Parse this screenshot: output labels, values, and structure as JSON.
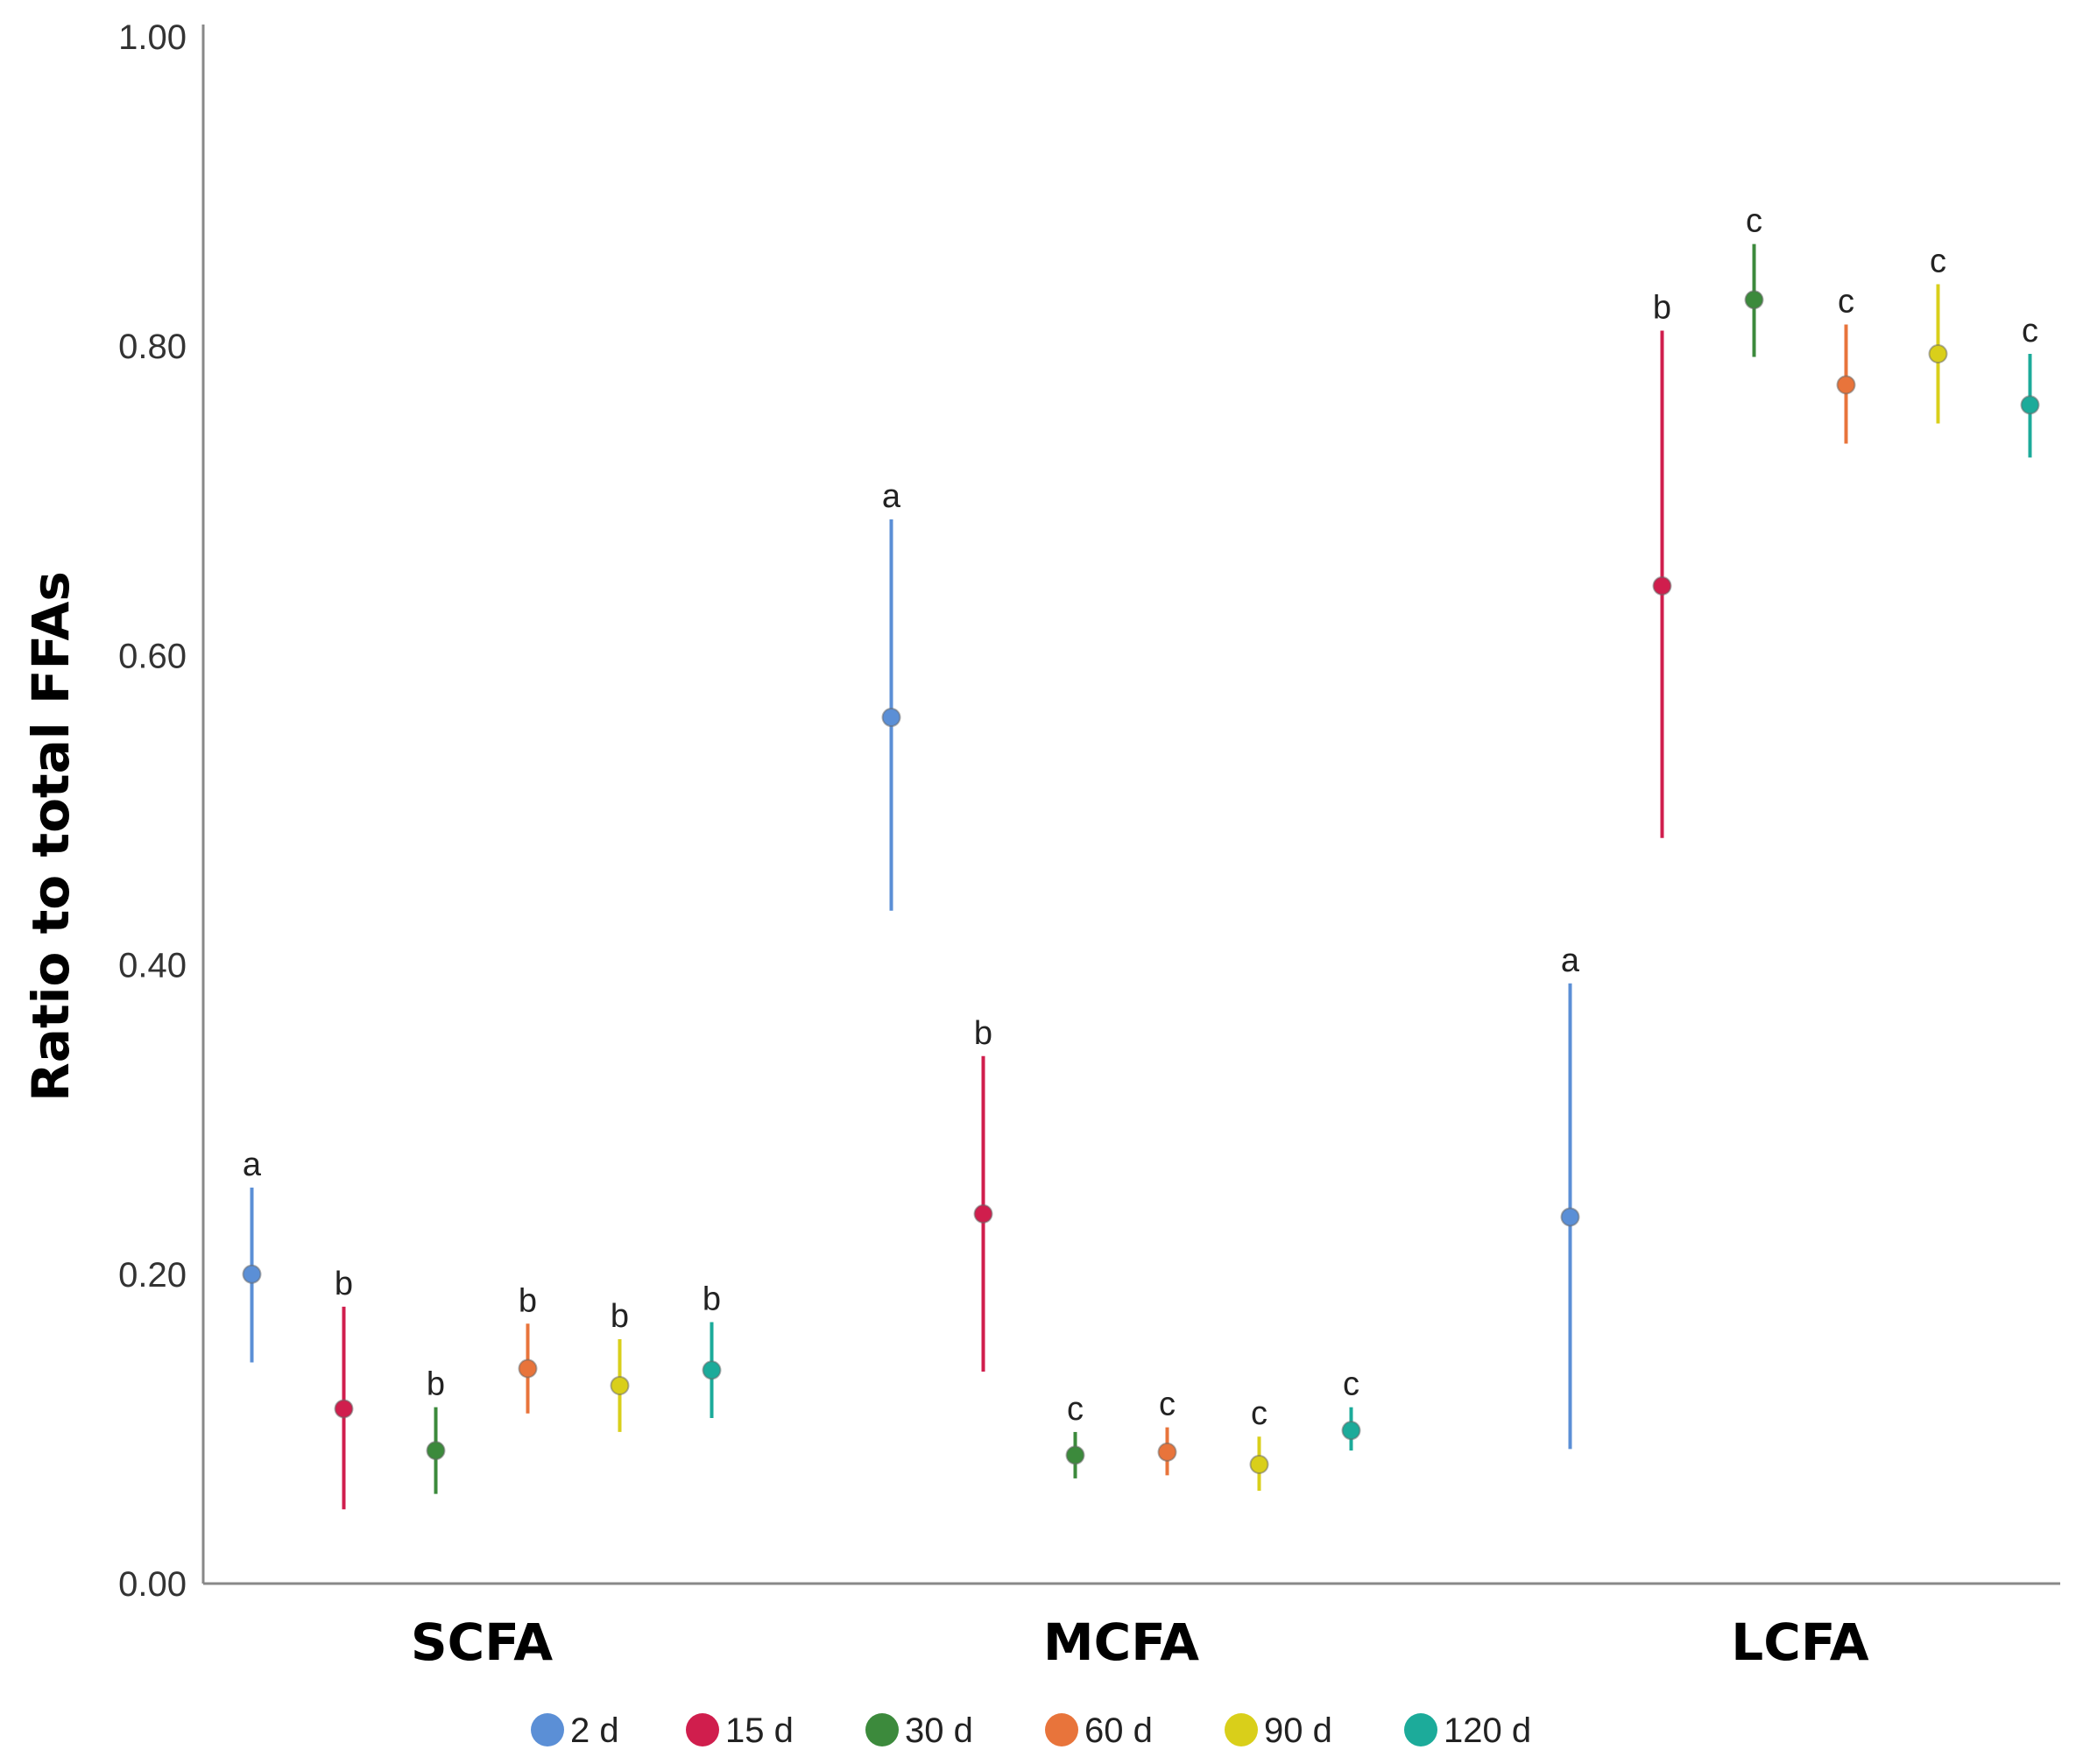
{
  "chart_data": {
    "type": "scatter",
    "subtype": "point-with-error-bars",
    "title": "",
    "xlabel": "",
    "ylabel": "Ratio to total FFAs",
    "ylim": [
      0,
      1.0
    ],
    "yticks": [
      "0.00",
      "0.20",
      "0.40",
      "0.60",
      "0.80",
      "1.00"
    ],
    "ytick_values": [
      0,
      0.2,
      0.4,
      0.6,
      0.8,
      1.0
    ],
    "grid": false,
    "legend_position": "bottom",
    "categories": [
      "SCFA",
      "MCFA",
      "LCFA"
    ],
    "series": [
      {
        "name": "2 d",
        "color": "#5b8fd6",
        "values": [
          0.2,
          0.56,
          0.237
        ],
        "err_low": [
          0.143,
          0.435,
          0.087
        ],
        "err_high": [
          0.256,
          0.688,
          0.388
        ],
        "letters": [
          "a",
          "a",
          "a"
        ]
      },
      {
        "name": "15 d",
        "color": "#d01e4d",
        "values": [
          0.113,
          0.239,
          0.645
        ],
        "err_low": [
          0.048,
          0.137,
          0.482
        ],
        "err_high": [
          0.179,
          0.341,
          0.81
        ],
        "letters": [
          "b",
          "b",
          "b"
        ]
      },
      {
        "name": "30 d",
        "color": "#3c8a3c",
        "values": [
          0.086,
          0.083,
          0.83
        ],
        "err_low": [
          0.058,
          0.068,
          0.793
        ],
        "err_high": [
          0.114,
          0.098,
          0.866
        ],
        "letters": [
          "b",
          "c",
          "c"
        ]
      },
      {
        "name": "60 d",
        "color": "#e8743b",
        "values": [
          0.139,
          0.085,
          0.775
        ],
        "err_low": [
          0.11,
          0.07,
          0.737
        ],
        "err_high": [
          0.168,
          0.101,
          0.814
        ],
        "letters": [
          "b",
          "c",
          "c"
        ]
      },
      {
        "name": "90 d",
        "color": "#d9cf1a",
        "values": [
          0.128,
          0.077,
          0.795
        ],
        "err_low": [
          0.098,
          0.06,
          0.75
        ],
        "err_high": [
          0.158,
          0.095,
          0.84
        ],
        "letters": [
          "b",
          "c",
          "c"
        ]
      },
      {
        "name": "120 d",
        "color": "#1cab9a",
        "values": [
          0.138,
          0.099,
          0.762
        ],
        "err_low": [
          0.107,
          0.086,
          0.728
        ],
        "err_high": [
          0.169,
          0.114,
          0.795
        ],
        "letters": [
          "b",
          "c",
          "c"
        ]
      }
    ]
  }
}
